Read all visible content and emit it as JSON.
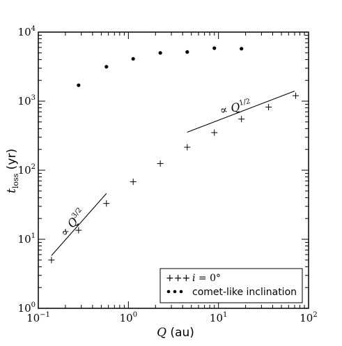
{
  "chart_data": {
    "type": "scatter",
    "xscale": "log",
    "yscale": "log",
    "xlim": [
      0.1,
      100
    ],
    "ylim": [
      1,
      10000
    ],
    "grid": false,
    "xlabel": "Q (au)",
    "ylabel": "t_loss (yr)",
    "xticks": [
      {
        "value": 0.1,
        "base": "10",
        "exp": "−1"
      },
      {
        "value": 1,
        "base": "10",
        "exp": "0"
      },
      {
        "value": 10,
        "base": "10",
        "exp": "1"
      },
      {
        "value": 100,
        "base": "10",
        "exp": "2"
      }
    ],
    "yticks": [
      {
        "value": 1,
        "base": "10",
        "exp": "0"
      },
      {
        "value": 10,
        "base": "10",
        "exp": "1"
      },
      {
        "value": 100,
        "base": "10",
        "exp": "2"
      },
      {
        "value": 1000,
        "base": "10",
        "exp": "3"
      },
      {
        "value": 10000,
        "base": "10",
        "exp": "4"
      }
    ],
    "series": [
      {
        "name": "i = 0°",
        "marker": "plus",
        "x": [
          0.14,
          0.28,
          0.57,
          1.13,
          2.26,
          4.5,
          9.0,
          18.0,
          36.0,
          72.0
        ],
        "y": [
          5,
          13.5,
          33,
          68,
          125,
          215,
          350,
          550,
          820,
          1200
        ]
      },
      {
        "name": "comet-like inclination",
        "marker": "dot",
        "x": [
          0.28,
          0.57,
          1.13,
          2.26,
          4.5,
          9.0,
          18.0
        ],
        "y": [
          1700,
          3150,
          4100,
          5000,
          5150,
          5850,
          5750
        ]
      }
    ],
    "fits": [
      {
        "label": "∝ Q^3/2",
        "x": [
          0.14,
          0.57
        ],
        "y": [
          5.8,
          46
        ]
      },
      {
        "label": "∝ Q^1/2",
        "x": [
          4.5,
          70
        ],
        "y": [
          355,
          1400
        ]
      }
    ],
    "legend": {
      "position": "bottom-right",
      "entries": [
        {
          "marker_text": "+++",
          "label": "i = 0°"
        },
        {
          "marker_text": "•••",
          "label": "comet-like inclination"
        }
      ]
    }
  }
}
